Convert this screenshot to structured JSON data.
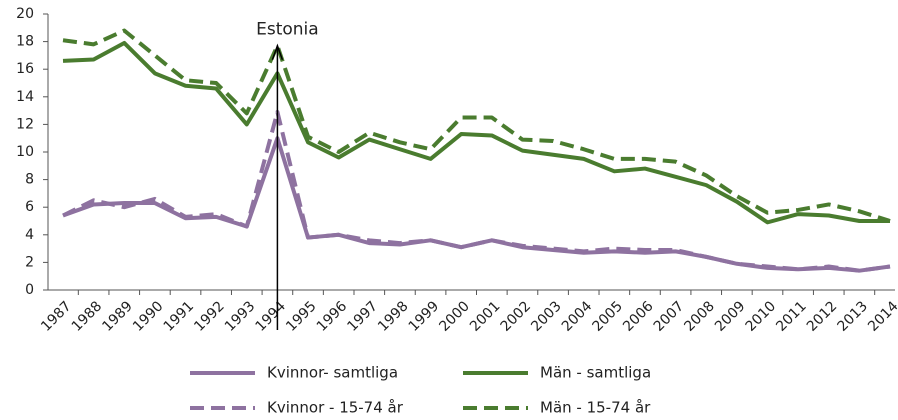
{
  "chart_data": {
    "type": "line",
    "categories": [
      "1987",
      "1988",
      "1989",
      "1990",
      "1991",
      "1992",
      "1993",
      "1994",
      "1995",
      "1996",
      "1997",
      "1998",
      "1999",
      "2000",
      "2001",
      "2002",
      "2003",
      "2004",
      "2005",
      "2006",
      "2007",
      "2008",
      "2009",
      "2010",
      "2011",
      "2012",
      "2013",
      "2014"
    ],
    "series": [
      {
        "name": "Kvinnor- samtliga",
        "color": "#8e72a0",
        "style": "solid",
        "values": [
          5.4,
          6.2,
          6.3,
          6.3,
          5.2,
          5.3,
          4.6,
          11.0,
          3.8,
          4.0,
          3.4,
          3.3,
          3.6,
          3.1,
          3.6,
          3.1,
          2.9,
          2.7,
          2.8,
          2.7,
          2.8,
          2.4,
          1.9,
          1.6,
          1.5,
          1.6,
          1.4,
          1.7
        ]
      },
      {
        "name": "Män - samtliga",
        "color": "#4a7c2f",
        "style": "solid",
        "values": [
          16.6,
          16.7,
          17.9,
          15.7,
          14.8,
          14.6,
          12.0,
          15.7,
          10.7,
          9.6,
          10.9,
          10.2,
          9.5,
          11.3,
          11.2,
          10.1,
          9.8,
          9.5,
          8.6,
          8.8,
          8.2,
          7.6,
          6.4,
          4.9,
          5.5,
          5.4,
          5.0,
          5.0
        ]
      },
      {
        "name": "Kvinnor - 15-74 år",
        "color": "#8e72a0",
        "style": "dashed",
        "values": [
          5.4,
          6.5,
          6.0,
          6.6,
          5.3,
          5.5,
          4.6,
          12.9,
          3.8,
          4.0,
          3.6,
          3.4,
          3.6,
          3.1,
          3.6,
          3.2,
          3.0,
          2.8,
          3.0,
          2.9,
          2.9,
          2.4,
          1.9,
          1.7,
          1.5,
          1.7,
          1.4,
          1.7
        ]
      },
      {
        "name": "Män - 15-74 år",
        "color": "#4a7c2f",
        "style": "dashed",
        "values": [
          18.1,
          17.8,
          18.8,
          17.0,
          15.2,
          15.0,
          12.8,
          17.7,
          11.1,
          10.0,
          11.4,
          10.7,
          10.2,
          12.5,
          12.5,
          10.9,
          10.8,
          10.2,
          9.5,
          9.5,
          9.3,
          8.3,
          6.8,
          5.6,
          5.8,
          6.2,
          5.7,
          5.0
        ]
      }
    ],
    "ylim": [
      0,
      20
    ],
    "yticks": [
      0,
      2,
      4,
      6,
      8,
      10,
      12,
      14,
      16,
      18,
      20
    ],
    "grid": false,
    "annotation": {
      "text": "Estonia",
      "x": "1994"
    },
    "legend": "bottom"
  }
}
